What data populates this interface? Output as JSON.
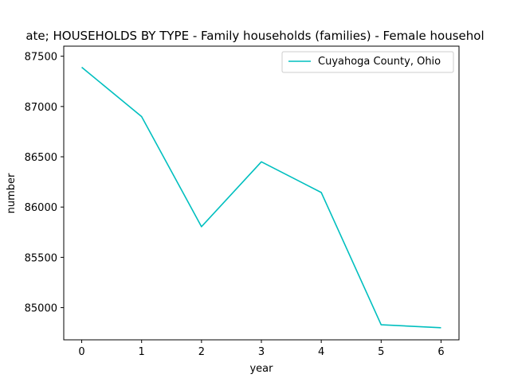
{
  "chart_data": {
    "type": "line",
    "title": "ate; HOUSEHOLDS BY TYPE - Family households (families) - Female househol",
    "xlabel": "year",
    "ylabel": "number",
    "x": [
      0,
      1,
      2,
      3,
      4,
      5,
      6
    ],
    "xlim": [
      -0.3,
      6.3
    ],
    "ylim": [
      84680,
      87600
    ],
    "xticks": [
      0,
      1,
      2,
      3,
      4,
      5,
      6
    ],
    "yticks": [
      85000,
      85500,
      86000,
      86500,
      87000,
      87500
    ],
    "grid": false,
    "legend_position": "top-right",
    "series": [
      {
        "name": "Cuyahoga County, Ohio",
        "color": "#00bfbf",
        "values": [
          87390,
          86900,
          85805,
          86450,
          86145,
          84830,
          84800
        ]
      }
    ]
  }
}
